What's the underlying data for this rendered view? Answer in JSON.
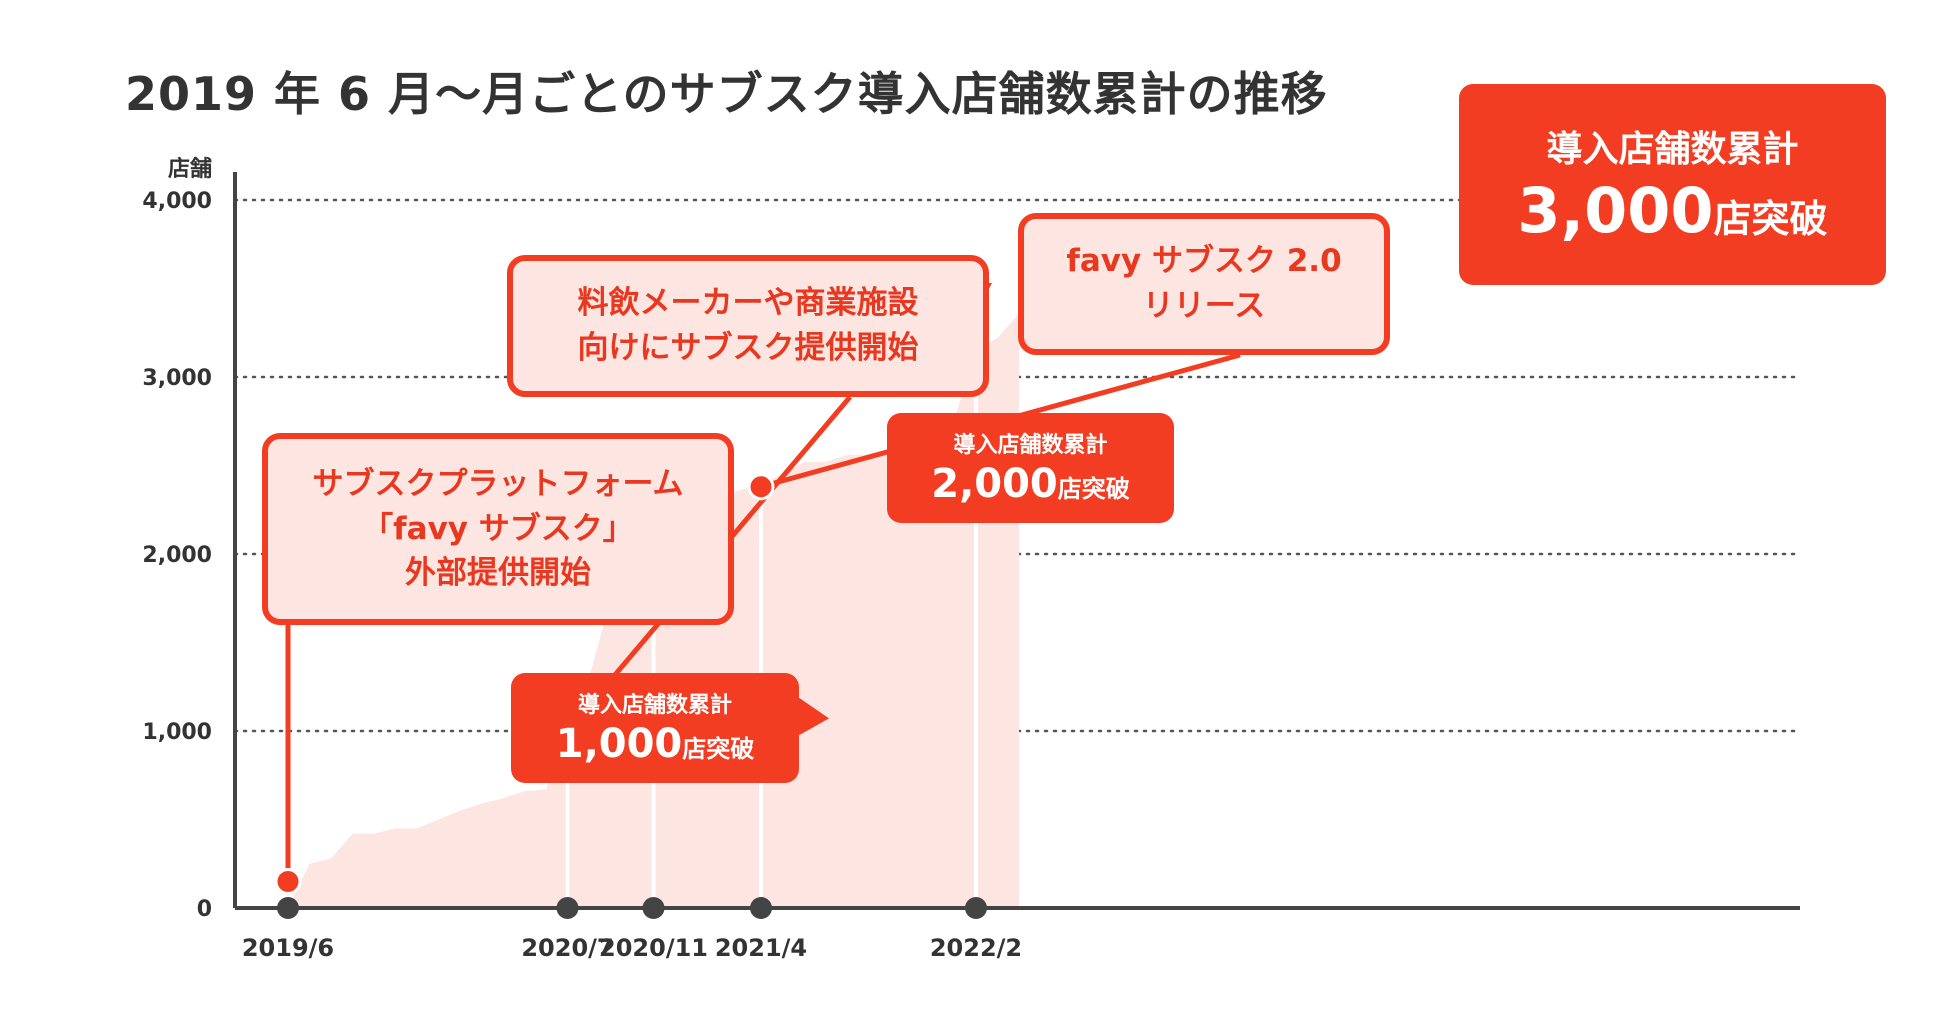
{
  "title": "2019 年 6 月〜月ごとのサブスク導入店舗数累計の推移",
  "chart_data": {
    "type": "area",
    "title": "2019 年 6 月〜月ごとのサブスク導入店舗数累計の推移",
    "ylabel": "店舗",
    "xlabel": "",
    "ylim": [
      0,
      4000
    ],
    "yticks": [
      "0",
      "1,000",
      "2,000",
      "3,000",
      "4,000"
    ],
    "grid": true,
    "x": [
      "2019/6",
      "2019/7",
      "2019/8",
      "2019/9",
      "2019/10",
      "2019/11",
      "2019/12",
      "2020/1",
      "2020/2",
      "2020/3",
      "2020/4",
      "2020/5",
      "2020/6",
      "2020/7",
      "2020/8",
      "2020/9",
      "2020/10",
      "2020/11",
      "2020/12",
      "2021/1",
      "2021/2",
      "2021/3",
      "2021/4",
      "2021/5",
      "2021/6",
      "2021/7",
      "2021/8",
      "2021/9",
      "2021/10",
      "2021/11",
      "2021/12",
      "2022/1",
      "2022/2",
      "2022/3",
      "2022/4"
    ],
    "values": [
      0,
      250,
      280,
      420,
      420,
      450,
      450,
      500,
      550,
      590,
      620,
      660,
      670,
      1000,
      1300,
      1740,
      1880,
      2000,
      2120,
      2200,
      2320,
      2360,
      2400,
      2450,
      2520,
      2520,
      2560,
      2560,
      2580,
      2640,
      2700,
      2760,
      3160,
      3220,
      3360
    ],
    "xtick_labels": [
      "2019/6",
      "2020/7",
      "2020/11",
      "2021/4",
      "2022/2"
    ],
    "series_color": "#fde6e2",
    "annotations": [
      {
        "date": "2019/6",
        "value": 150,
        "text": [
          "サブスクプラットフォーム",
          "「favy サブスク」",
          "外部提供開始"
        ]
      },
      {
        "date": "2020/7",
        "value": 1000,
        "text": [
          "料飲メーカーや商業施設",
          "向けにサブスク提供開始"
        ]
      },
      {
        "date": "2020/7",
        "value": 1000,
        "text": [
          "導入店舗数累計"
        ],
        "number": "1,000",
        "suffix": "店突破"
      },
      {
        "date": "2020/11",
        "value": 2000,
        "text": [
          "導入店舗数累計"
        ],
        "number": "2,000",
        "suffix": "店突破"
      },
      {
        "date": "2021/4",
        "value": 2380,
        "text": [
          "favy サブスク 2.0",
          "リリース"
        ]
      },
      {
        "date": "2022/2",
        "value": 3160,
        "text": [
          "導入店舗数累計"
        ],
        "number": "3,000",
        "suffix": "店突破"
      }
    ]
  },
  "colors": {
    "accent": "#f23d23",
    "area": "#fde6e2",
    "axis": "#444444",
    "grid": "#555555"
  }
}
